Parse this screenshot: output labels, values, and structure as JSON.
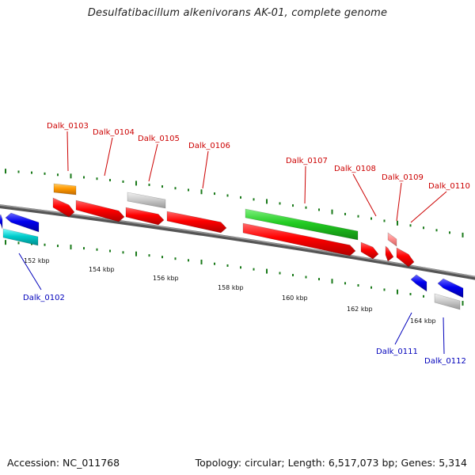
{
  "title": "Desulfatibacillum alkenivorans AK-01, complete genome",
  "footer": {
    "accession": "Accession: NC_011768",
    "summary": "Topology: circular; Length: 6,517,073 bp; Genes: 5,314"
  },
  "colors": {
    "forward_label": "#cc0000",
    "reverse_label": "#0000bb",
    "backbone": "#777777",
    "tick": "#1a7a1a"
  },
  "scale_labels": [
    "152 kbp",
    "154 kbp",
    "156 kbp",
    "158 kbp",
    "160 kbp",
    "162 kbp",
    "164 kbp"
  ],
  "gene_labels": {
    "forward": [
      "Dalk_0103",
      "Dalk_0104",
      "Dalk_0105",
      "Dalk_0106",
      "Dalk_0107",
      "Dalk_0108",
      "Dalk_0109",
      "Dalk_0110"
    ],
    "reverse": [
      "Dalk_0102",
      "Dalk_0111",
      "Dalk_0112"
    ]
  }
}
